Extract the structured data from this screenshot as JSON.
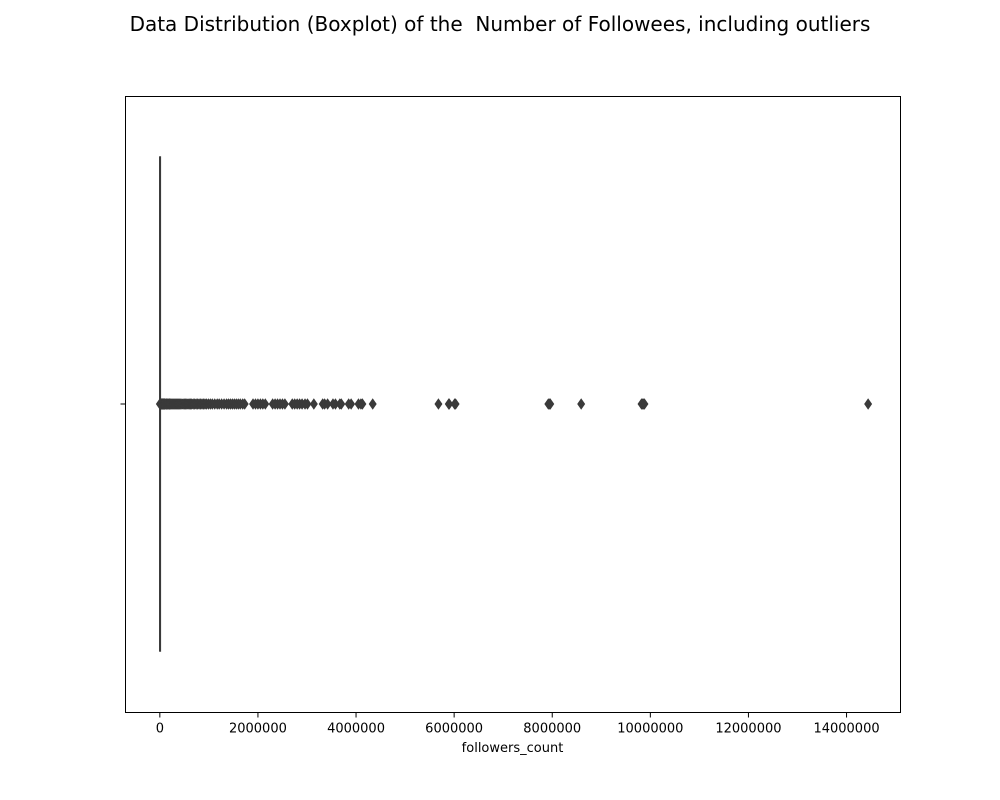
{
  "chart_data": {
    "type": "box",
    "title": "Data Distribution (Boxplot) of the  Number of Followees, including outliers",
    "xlabel": "followers_count",
    "ylabel": "",
    "orientation": "horizontal",
    "xlim": [
      -700000,
      15100000
    ],
    "x_ticks": [
      0,
      2000000,
      4000000,
      6000000,
      8000000,
      10000000,
      12000000,
      14000000
    ],
    "x_tick_labels": [
      "0",
      "2000000",
      "4000000",
      "6000000",
      "8000000",
      "10000000",
      "12000000",
      "14000000"
    ],
    "y_tick_labels": [
      ""
    ],
    "grid": false,
    "colors": {
      "box": "#3a3a3a",
      "flier": "#3a3a3a"
    },
    "box": {
      "min": 0,
      "q1": 0,
      "median": 0,
      "q3": 0,
      "max": 0
    },
    "outliers": [
      0,
      10000,
      20000,
      30000,
      40000,
      50000,
      60000,
      70000,
      80000,
      90000,
      100000,
      115000,
      130000,
      145000,
      160000,
      175000,
      190000,
      205000,
      220000,
      240000,
      260000,
      280000,
      300000,
      320000,
      340000,
      360000,
      380000,
      400000,
      425000,
      450000,
      475000,
      500000,
      525000,
      550000,
      575000,
      600000,
      625000,
      650000,
      680000,
      710000,
      740000,
      770000,
      800000,
      830000,
      860000,
      890000,
      920000,
      950000,
      990000,
      1030000,
      1070000,
      1120000,
      1170000,
      1210000,
      1260000,
      1310000,
      1360000,
      1400000,
      1440000,
      1480000,
      1520000,
      1560000,
      1600000,
      1640000,
      1690000,
      1730000,
      1900000,
      1950000,
      2000000,
      2050000,
      2100000,
      2150000,
      2300000,
      2350000,
      2400000,
      2450000,
      2500000,
      2550000,
      2700000,
      2750000,
      2800000,
      2850000,
      2900000,
      2960000,
      3010000,
      3140000,
      3320000,
      3360000,
      3420000,
      3530000,
      3580000,
      3670000,
      3700000,
      3850000,
      3900000,
      4050000,
      4100000,
      4130000,
      4340000,
      5680000,
      5890000,
      5900000,
      6010000,
      6030000,
      7920000,
      7940000,
      7960000,
      8590000,
      9820000,
      9840000,
      9860000,
      9880000,
      14440000
    ]
  }
}
